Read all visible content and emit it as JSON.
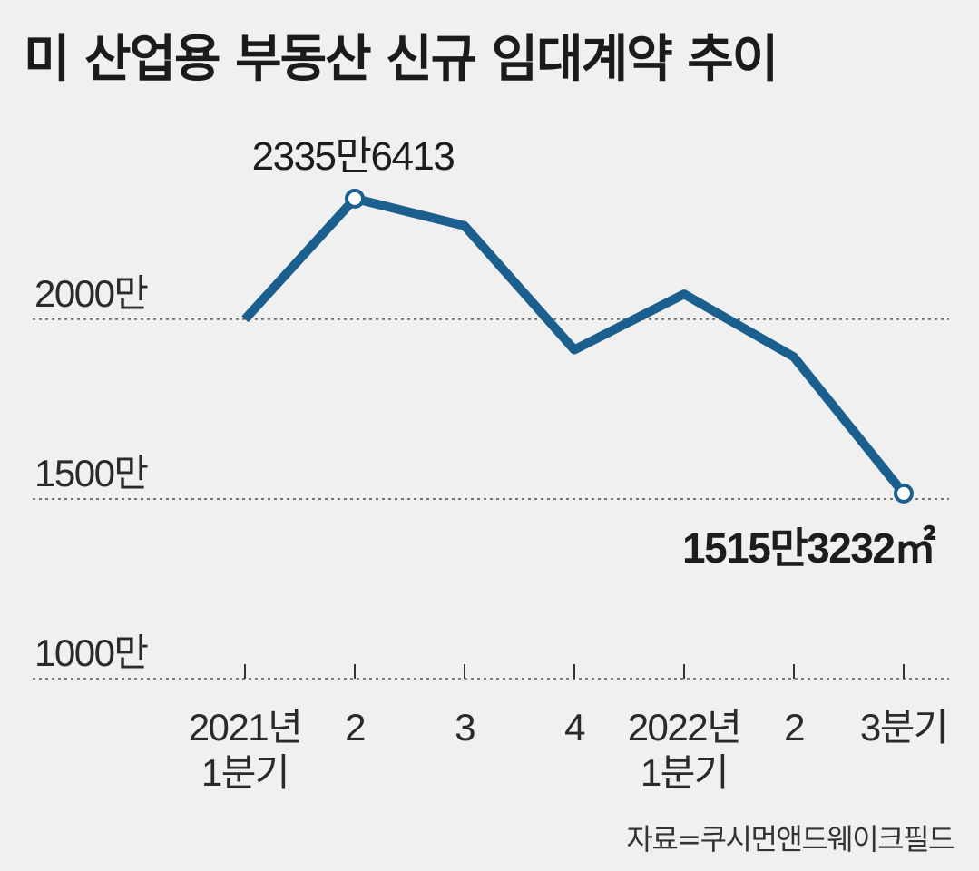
{
  "title": "미 산업용 부동산 신규 임대계약 추이",
  "source": "자료=쿠시먼앤드웨이크필드",
  "colors": {
    "line": "#1b5f8f",
    "marker_fill": "#ffffff",
    "grid": "#555555",
    "background": "#f0f0f0"
  },
  "chart_data": {
    "type": "line",
    "categories": [
      [
        "2021년",
        "1분기"
      ],
      [
        "2"
      ],
      [
        "3"
      ],
      [
        "4"
      ],
      [
        "2022년",
        "1분기"
      ],
      [
        "2"
      ],
      [
        "3분기"
      ]
    ],
    "series": [
      {
        "values": [
          20000000,
          23356413,
          22600000,
          19150000,
          20700000,
          18950000,
          15153232
        ]
      }
    ],
    "yticks": [
      {
        "value": 10000000,
        "label": "1000만"
      },
      {
        "value": 15000000,
        "label": "1500만"
      },
      {
        "value": 20000000,
        "label": "2000만"
      }
    ],
    "ylim": [
      10000000,
      25500000
    ],
    "grid": "dashed horizontal at tick values",
    "annotations": [
      {
        "index": 1,
        "text": "2335만6413",
        "bold": false
      },
      {
        "index": 6,
        "text": "1515만3232㎡",
        "bold": true
      }
    ],
    "highlight_points": [
      1,
      6
    ]
  }
}
